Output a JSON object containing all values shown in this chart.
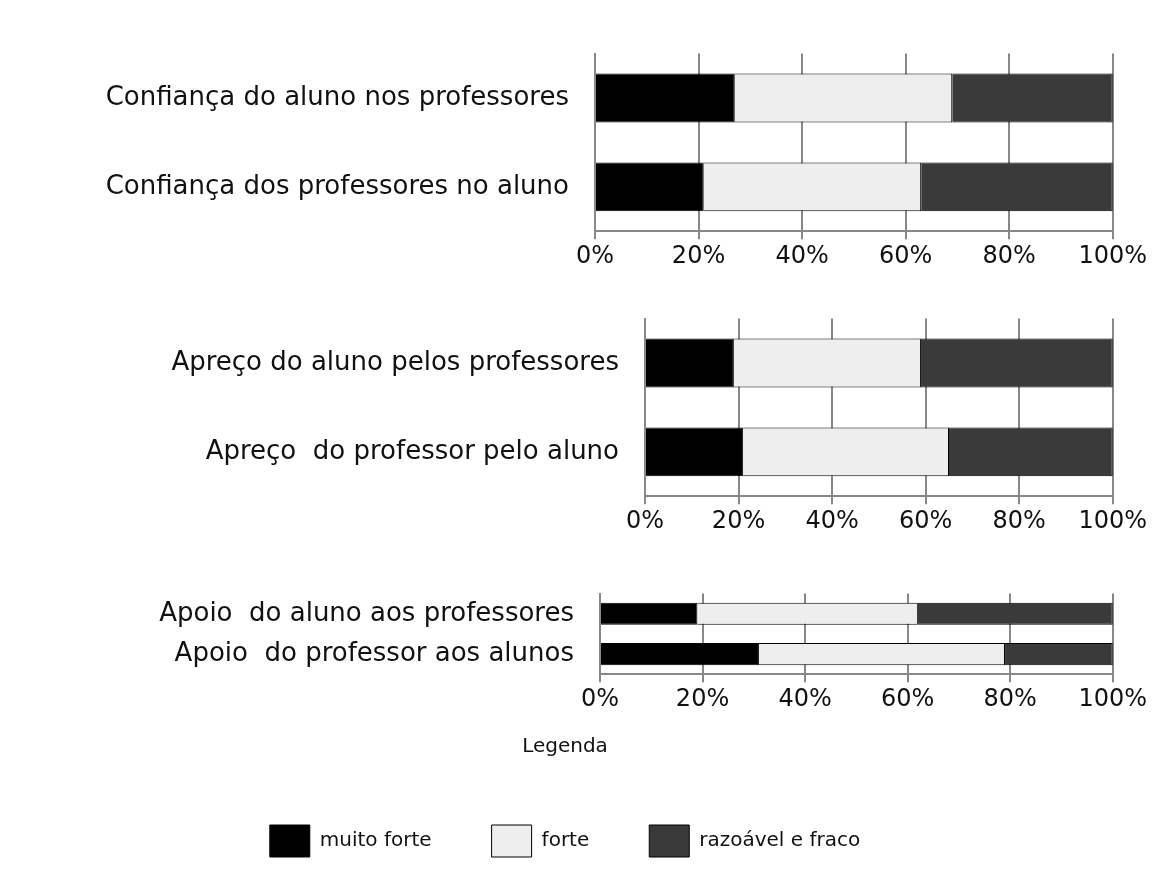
{
  "chart_data": [
    {
      "type": "bar",
      "orientation": "horizontal",
      "stacked": true,
      "categories": [
        "Confiança do aluno nos professores",
        "Confiança dos professores no aluno"
      ],
      "series": [
        {
          "color": "#000000",
          "values": [
            27,
            21
          ]
        },
        {
          "color": "#eeeeee",
          "values": [
            42,
            42
          ]
        },
        {
          "color": "#3a3a3a",
          "values": [
            31,
            37
          ]
        }
      ],
      "xlim": [
        0,
        100
      ],
      "xticks": [
        {
          "value": 0,
          "label": "0%"
        },
        {
          "value": 20,
          "label": "20%"
        },
        {
          "value": 40,
          "label": "40%"
        },
        {
          "value": 60,
          "label": "60%"
        },
        {
          "value": 80,
          "label": "80%"
        },
        {
          "value": 100,
          "label": "100%"
        }
      ],
      "grid": "x",
      "legend": false
    },
    {
      "type": "bar",
      "orientation": "horizontal",
      "stacked": true,
      "categories": [
        "Apreço do aluno pelos professores",
        "Apreço  do professor pelo aluno"
      ],
      "series": [
        {
          "color": "#000000",
          "values": [
            19,
            21
          ]
        },
        {
          "color": "#eeeeee",
          "values": [
            40,
            44
          ]
        },
        {
          "color": "#3a3a3a",
          "values": [
            41,
            35
          ]
        }
      ],
      "xlim": [
        0,
        100
      ],
      "xticks": [
        {
          "value": 0,
          "label": "0%"
        },
        {
          "value": 20,
          "label": "20%"
        },
        {
          "value": 40,
          "label": "40%"
        },
        {
          "value": 60,
          "label": "60%"
        },
        {
          "value": 80,
          "label": "80%"
        },
        {
          "value": 100,
          "label": "100%"
        }
      ],
      "grid": "x",
      "legend": false
    },
    {
      "type": "bar",
      "orientation": "horizontal",
      "stacked": true,
      "categories": [
        "Apoio  do aluno aos professores",
        "Apoio  do professor aos alunos"
      ],
      "series": [
        {
          "name": "muito forte",
          "color": "#000000",
          "values": [
            19,
            31
          ]
        },
        {
          "name": "forte",
          "color": "#eeeeee",
          "values": [
            43,
            48
          ]
        },
        {
          "name": "razoável e fraco",
          "color": "#3a3a3a",
          "values": [
            38,
            21
          ]
        }
      ],
      "xlim": [
        0,
        100
      ],
      "xticks": [
        {
          "value": 0,
          "label": "0%"
        },
        {
          "value": 20,
          "label": "20%"
        },
        {
          "value": 40,
          "label": "40%"
        },
        {
          "value": 60,
          "label": "60%"
        },
        {
          "value": 80,
          "label": "80%"
        },
        {
          "value": 100,
          "label": "100%"
        }
      ],
      "grid": "x",
      "legend": "bottom",
      "legend_title": "Legenda"
    }
  ]
}
